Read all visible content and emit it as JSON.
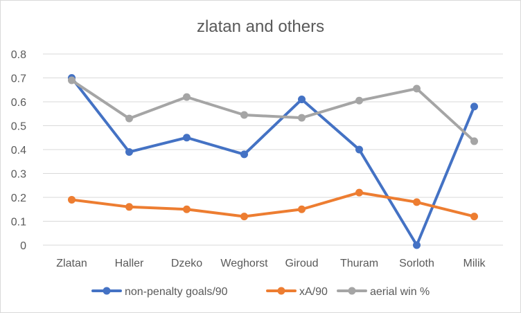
{
  "chart_data": {
    "type": "line",
    "title": "zlatan and others",
    "categories": [
      "Zlatan",
      "Haller",
      "Dzeko",
      "Weghorst",
      "Giroud",
      "Thuram",
      "Sorloth",
      "Milik"
    ],
    "series": [
      {
        "name": "non-penalty goals/90",
        "color": "#4472c4",
        "values": [
          0.7,
          0.39,
          0.45,
          0.38,
          0.61,
          0.4,
          0.0,
          0.58
        ]
      },
      {
        "name": "xA/90",
        "color": "#ed7d31",
        "values": [
          0.19,
          0.16,
          0.15,
          0.12,
          0.15,
          0.22,
          0.18,
          0.12
        ]
      },
      {
        "name": "aerial win %",
        "color": "#a5a5a5",
        "values": [
          0.69,
          0.53,
          0.62,
          0.545,
          0.533,
          0.605,
          0.655,
          0.435
        ]
      }
    ],
    "y_ticks": [
      "0",
      "0.1",
      "0.2",
      "0.3",
      "0.4",
      "0.5",
      "0.6",
      "0.7",
      "0.8"
    ],
    "ylim": [
      0,
      0.8
    ],
    "grid": true,
    "legend_position": "bottom",
    "gridline_color": "#d9d9d9"
  }
}
